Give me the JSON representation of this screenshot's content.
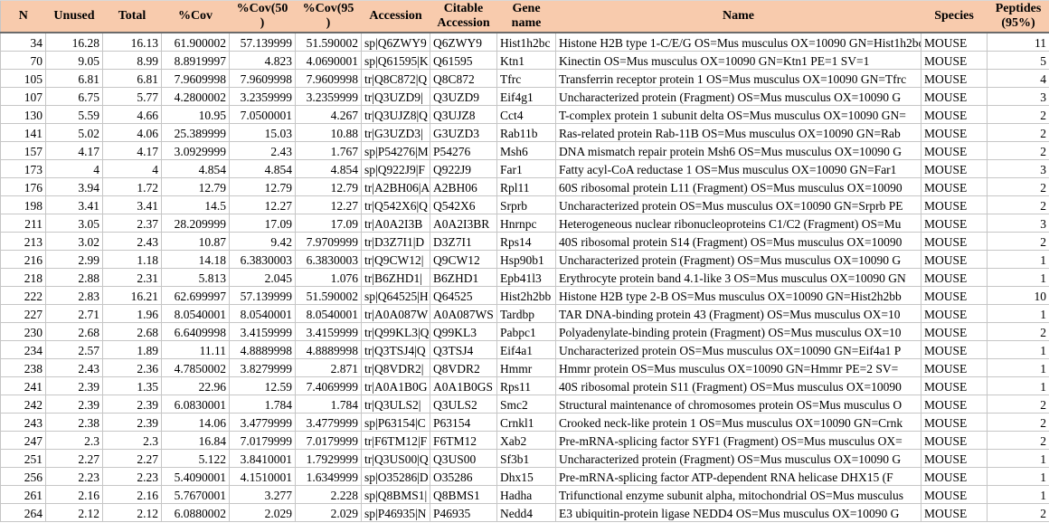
{
  "colors": {
    "header_bg": "#F8CBAD",
    "gridline": "#C6C6C6",
    "header_rule": "#6B6B6B",
    "text": "#000000"
  },
  "table": {
    "columns": [
      {
        "key": "n",
        "label": "N"
      },
      {
        "key": "unused",
        "label": "Unused"
      },
      {
        "key": "total",
        "label": "Total"
      },
      {
        "key": "cov",
        "label": "%Cov"
      },
      {
        "key": "cov50",
        "label": "%Cov(50\n)"
      },
      {
        "key": "cov95",
        "label": "%Cov(95\n)"
      },
      {
        "key": "accession",
        "label": "Accession"
      },
      {
        "key": "citable-accession",
        "label": "Citable\nAccession"
      },
      {
        "key": "gene-name",
        "label": "Gene\nname"
      },
      {
        "key": "name",
        "label": "Name"
      },
      {
        "key": "species",
        "label": "Species"
      },
      {
        "key": "peptides-95",
        "label": "Peptides\n(95%)"
      }
    ],
    "rows": [
      [
        "34",
        "16.28",
        "16.13",
        "61.900002",
        "57.139999",
        "51.590002",
        "sp|Q6ZWY9",
        "Q6ZWY9",
        "Hist1h2bc",
        "Histone H2B type 1-C/E/G OS=Mus musculus OX=10090 GN=Hist1h2bc",
        "MOUSE",
        "11"
      ],
      [
        "70",
        "9.05",
        "8.99",
        "8.8919997",
        "4.823",
        "4.0690001",
        "sp|Q61595|K",
        "Q61595",
        "Ktn1",
        "Kinectin OS=Mus musculus OX=10090 GN=Ktn1 PE=1 SV=1",
        "MOUSE",
        "5"
      ],
      [
        "105",
        "6.81",
        "6.81",
        "7.9609998",
        "7.9609998",
        "7.9609998",
        "tr|Q8C872|Q",
        "Q8C872",
        "Tfrc",
        "Transferrin receptor protein 1 OS=Mus musculus OX=10090 GN=Tfrc",
        "MOUSE",
        "4"
      ],
      [
        "107",
        "6.75",
        "5.77",
        "4.2800002",
        "3.2359999",
        "3.2359999",
        "tr|Q3UZD9|",
        "Q3UZD9",
        "Eif4g1",
        "Uncharacterized protein (Fragment) OS=Mus musculus OX=10090 G",
        "MOUSE",
        "3"
      ],
      [
        "130",
        "5.59",
        "4.66",
        "10.95",
        "7.0500001",
        "4.267",
        "tr|Q3UJZ8|Q",
        "Q3UJZ8",
        "Cct4",
        "T-complex protein 1 subunit delta OS=Mus musculus OX=10090 GN=",
        "MOUSE",
        "2"
      ],
      [
        "141",
        "5.02",
        "4.06",
        "25.389999",
        "15.03",
        "10.88",
        "tr|G3UZD3|",
        "G3UZD3",
        "Rab11b",
        "Ras-related protein Rab-11B OS=Mus musculus OX=10090 GN=Rab",
        "MOUSE",
        "2"
      ],
      [
        "157",
        "4.17",
        "4.17",
        "3.0929999",
        "2.43",
        "1.767",
        "sp|P54276|M",
        "P54276",
        "Msh6",
        "DNA mismatch repair protein Msh6 OS=Mus musculus OX=10090 G",
        "MOUSE",
        "2"
      ],
      [
        "173",
        "4",
        "4",
        "4.854",
        "4.854",
        "4.854",
        "sp|Q922J9|F",
        "Q922J9",
        "Far1",
        "Fatty acyl-CoA reductase 1 OS=Mus musculus OX=10090 GN=Far1",
        "MOUSE",
        "3"
      ],
      [
        "176",
        "3.94",
        "1.72",
        "12.79",
        "12.79",
        "12.79",
        "tr|A2BH06|A",
        "A2BH06",
        "Rpl11",
        "60S ribosomal protein L11 (Fragment) OS=Mus musculus OX=10090",
        "MOUSE",
        "2"
      ],
      [
        "198",
        "3.41",
        "3.41",
        "14.5",
        "12.27",
        "12.27",
        "tr|Q542X6|Q",
        "Q542X6",
        "Srprb",
        "Uncharacterized protein OS=Mus musculus OX=10090 GN=Srprb PE",
        "MOUSE",
        "2"
      ],
      [
        "211",
        "3.05",
        "2.37",
        "28.209999",
        "17.09",
        "17.09",
        "tr|A0A2I3B",
        "A0A2I3BR",
        "Hnrnpc",
        "Heterogeneous nuclear ribonucleoproteins C1/C2 (Fragment) OS=Mu",
        "MOUSE",
        "3"
      ],
      [
        "213",
        "3.02",
        "2.43",
        "10.87",
        "9.42",
        "7.9709999",
        "tr|D3Z7I1|D",
        "D3Z7I1",
        "Rps14",
        "40S ribosomal protein S14 (Fragment) OS=Mus musculus OX=10090",
        "MOUSE",
        "2"
      ],
      [
        "216",
        "2.99",
        "1.18",
        "14.18",
        "6.3830003",
        "6.3830003",
        "tr|Q9CW12|",
        "Q9CW12",
        "Hsp90b1",
        "Uncharacterized protein (Fragment) OS=Mus musculus OX=10090 G",
        "MOUSE",
        "1"
      ],
      [
        "218",
        "2.88",
        "2.31",
        "5.813",
        "2.045",
        "1.076",
        "tr|B6ZHD1|",
        "B6ZHD1",
        "Epb41l3",
        "Erythrocyte protein band 4.1-like 3 OS=Mus musculus OX=10090 GN",
        "MOUSE",
        "1"
      ],
      [
        "222",
        "2.83",
        "16.21",
        "62.699997",
        "57.139999",
        "51.590002",
        "sp|Q64525|H",
        "Q64525",
        "Hist2h2bb",
        "Histone H2B type 2-B OS=Mus musculus OX=10090 GN=Hist2h2bb",
        "MOUSE",
        "10"
      ],
      [
        "227",
        "2.71",
        "1.96",
        "8.0540001",
        "8.0540001",
        "8.0540001",
        "tr|A0A087W",
        "A0A087WS",
        "Tardbp",
        "TAR DNA-binding protein 43 (Fragment) OS=Mus musculus OX=10",
        "MOUSE",
        "1"
      ],
      [
        "230",
        "2.68",
        "2.68",
        "6.6409998",
        "3.4159999",
        "3.4159999",
        "tr|Q99KL3|Q",
        "Q99KL3",
        "Pabpc1",
        "Polyadenylate-binding protein (Fragment) OS=Mus musculus OX=10",
        "MOUSE",
        "2"
      ],
      [
        "234",
        "2.57",
        "1.89",
        "11.11",
        "4.8889998",
        "4.8889998",
        "tr|Q3TSJ4|Q",
        "Q3TSJ4",
        "Eif4a1",
        "Uncharacterized protein OS=Mus musculus OX=10090 GN=Eif4a1 P",
        "MOUSE",
        "1"
      ],
      [
        "238",
        "2.43",
        "2.36",
        "4.7850002",
        "3.8279999",
        "2.871",
        "tr|Q8VDR2|",
        "Q8VDR2",
        "Hmmr",
        "Hmmr protein OS=Mus musculus OX=10090 GN=Hmmr PE=2 SV=",
        "MOUSE",
        "1"
      ],
      [
        "241",
        "2.39",
        "1.35",
        "22.96",
        "12.59",
        "7.4069999",
        "tr|A0A1B0G",
        "A0A1B0GS",
        "Rps11",
        "40S ribosomal protein S11 (Fragment) OS=Mus musculus OX=10090",
        "MOUSE",
        "1"
      ],
      [
        "242",
        "2.39",
        "2.39",
        "6.0830001",
        "1.784",
        "1.784",
        "tr|Q3ULS2|",
        "Q3ULS2",
        "Smc2",
        "Structural maintenance of chromosomes protein OS=Mus musculus O",
        "MOUSE",
        "2"
      ],
      [
        "243",
        "2.38",
        "2.39",
        "14.06",
        "3.4779999",
        "3.4779999",
        "sp|P63154|C",
        "P63154",
        "Crnkl1",
        "Crooked neck-like protein 1 OS=Mus musculus OX=10090 GN=Crnk",
        "MOUSE",
        "2"
      ],
      [
        "247",
        "2.3",
        "2.3",
        "16.84",
        "7.0179999",
        "7.0179999",
        "tr|F6TM12|F",
        "F6TM12",
        "Xab2",
        "Pre-mRNA-splicing factor SYF1 (Fragment) OS=Mus musculus OX=",
        "MOUSE",
        "2"
      ],
      [
        "251",
        "2.27",
        "2.27",
        "5.122",
        "3.8410001",
        "1.7929999",
        "tr|Q3US00|Q",
        "Q3US00",
        "Sf3b1",
        "Uncharacterized protein (Fragment) OS=Mus musculus OX=10090 G",
        "MOUSE",
        "1"
      ],
      [
        "256",
        "2.23",
        "2.23",
        "5.4090001",
        "4.1510001",
        "1.6349999",
        "sp|O35286|D",
        "O35286",
        "Dhx15",
        "Pre-mRNA-splicing factor ATP-dependent RNA helicase DHX15 (F",
        "MOUSE",
        "1"
      ],
      [
        "261",
        "2.16",
        "2.16",
        "5.7670001",
        "3.277",
        "2.228",
        "sp|Q8BMS1|",
        "Q8BMS1",
        "Hadha",
        "Trifunctional enzyme subunit alpha, mitochondrial OS=Mus musculus",
        "MOUSE",
        "1"
      ],
      [
        "264",
        "2.12",
        "2.12",
        "6.0880002",
        "2.029",
        "2.029",
        "sp|P46935|N",
        "P46935",
        "Nedd4",
        "E3 ubiquitin-protein ligase NEDD4 OS=Mus musculus OX=10090 G",
        "MOUSE",
        "2"
      ]
    ]
  }
}
